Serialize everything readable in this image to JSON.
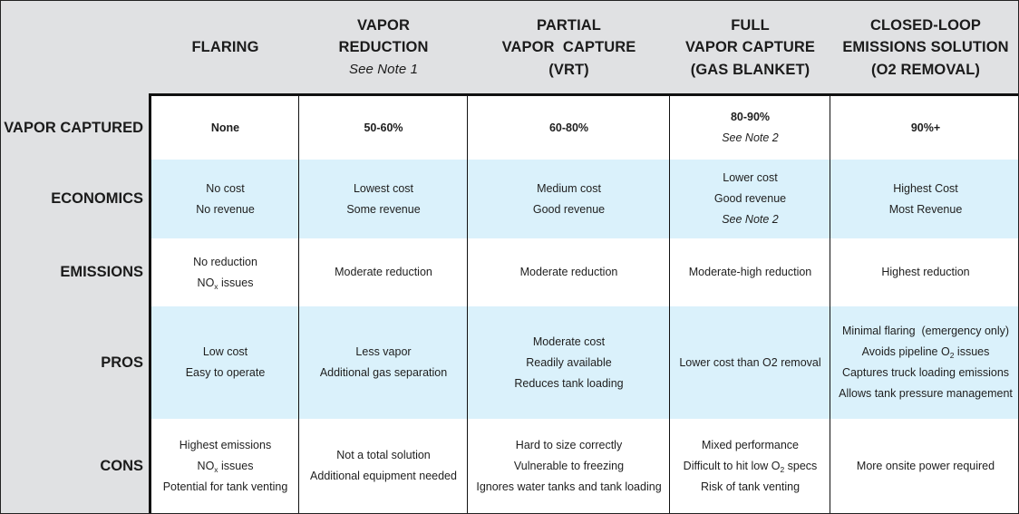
{
  "columns": [
    {
      "id": "flaring",
      "lines": [
        "FLARING"
      ],
      "note": ""
    },
    {
      "id": "vapor-reduction",
      "lines": [
        "VAPOR",
        "REDUCTION"
      ],
      "note": "See Note 1"
    },
    {
      "id": "partial-vapor-capture",
      "lines": [
        "PARTIAL",
        "VAPOR  CAPTURE",
        "(VRT)"
      ],
      "note": ""
    },
    {
      "id": "full-vapor-capture",
      "lines": [
        "FULL",
        "VAPOR CAPTURE",
        "(GAS BLANKET)"
      ],
      "note": ""
    },
    {
      "id": "closed-loop",
      "lines": [
        "CLOSED-LOOP",
        "EMISSIONS SOLUTION",
        "(O2 REMOVAL)"
      ],
      "note": ""
    }
  ],
  "rows": [
    {
      "label": "VAPOR CAPTURED",
      "bg": "white",
      "cells": [
        [
          {
            "t": "None",
            "b": true
          }
        ],
        [
          {
            "t": "50-60%",
            "b": true
          }
        ],
        [
          {
            "t": "60-80%",
            "b": true
          }
        ],
        [
          {
            "t": "80-90%",
            "b": true
          },
          {
            "t": "See Note 2",
            "i": true
          }
        ],
        [
          {
            "t": "90%+",
            "b": true
          }
        ]
      ]
    },
    {
      "label": "ECONOMICS",
      "bg": "blue",
      "cells": [
        [
          {
            "t": "No cost"
          },
          {
            "t": "No revenue"
          }
        ],
        [
          {
            "t": "Lowest cost"
          },
          {
            "t": "Some revenue"
          }
        ],
        [
          {
            "t": "Medium cost"
          },
          {
            "t": "Good revenue"
          }
        ],
        [
          {
            "t": "Lower cost"
          },
          {
            "t": "Good revenue"
          },
          {
            "t": "See Note 2",
            "i": true
          }
        ],
        [
          {
            "t": "Highest Cost"
          },
          {
            "t": "Most Revenue"
          }
        ]
      ]
    },
    {
      "label": "EMISSIONS",
      "bg": "white",
      "cells": [
        [
          {
            "t": "No reduction"
          },
          {
            "t": "NO",
            "sub": "x",
            "after": " issues"
          }
        ],
        [
          {
            "t": "Moderate reduction"
          }
        ],
        [
          {
            "t": "Moderate reduction"
          }
        ],
        [
          {
            "t": "Moderate-high reduction"
          }
        ],
        [
          {
            "t": "Highest reduction"
          }
        ]
      ]
    },
    {
      "label": "PROS",
      "bg": "blue",
      "cells": [
        [
          {
            "t": "Low cost"
          },
          {
            "t": "Easy to operate"
          }
        ],
        [
          {
            "t": "Less vapor"
          },
          {
            "t": "Additional gas separation"
          }
        ],
        [
          {
            "t": "Moderate cost"
          },
          {
            "t": "Readily available"
          },
          {
            "t": "Reduces tank loading"
          }
        ],
        [
          {
            "t": "Lower cost than O2 removal"
          }
        ],
        [
          {
            "t": "Minimal flaring  (emergency only)"
          },
          {
            "t": "Avoids pipeline O",
            "sub": "2",
            "after": " issues"
          },
          {
            "t": "Captures truck loading emissions"
          },
          {
            "t": "Allows tank pressure management"
          }
        ]
      ]
    },
    {
      "label": "CONS",
      "bg": "white",
      "cells": [
        [
          {
            "t": "Highest emissions"
          },
          {
            "t": "NO",
            "sub": "x",
            "after": " issues"
          },
          {
            "t": "Potential for tank venting"
          }
        ],
        [
          {
            "t": "Not a total solution"
          },
          {
            "t": "Additional equipment needed"
          }
        ],
        [
          {
            "t": "Hard to size correctly"
          },
          {
            "t": "Vulnerable to freezing"
          },
          {
            "t": "Ignores water tanks and tank loading"
          }
        ],
        [
          {
            "t": "Mixed performance"
          },
          {
            "t": "Difficult to hit low O",
            "sub": "2",
            "after": " specs"
          },
          {
            "t": "Risk of tank venting"
          }
        ],
        [
          {
            "t": "More onsite power required"
          }
        ]
      ]
    }
  ],
  "colors": {
    "header_bg": "#e0e1e3",
    "row_blue": "#daf1fb",
    "row_white": "#ffffff",
    "border": "#111111"
  }
}
